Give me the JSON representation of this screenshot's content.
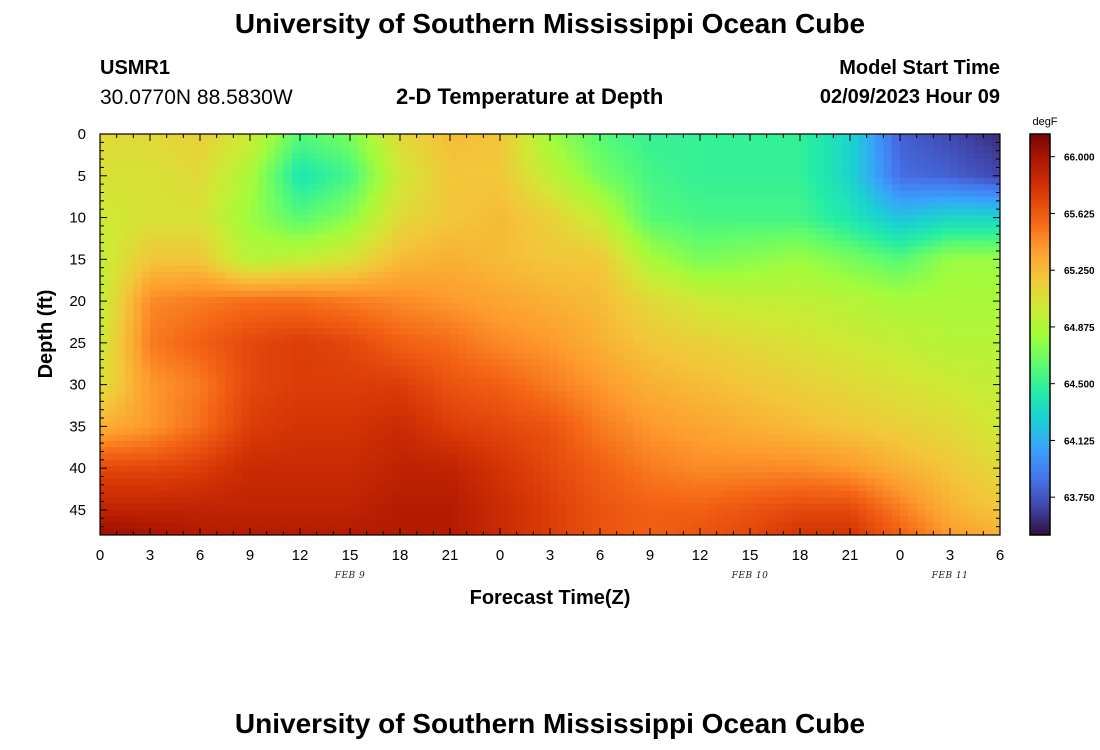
{
  "header": {
    "title_top": "University of Southern Mississippi Ocean Cube",
    "title_bottom": "University of Southern Mississippi Ocean Cube",
    "station_id": "USMR1",
    "coordinates": "30.0770N  88.5830W",
    "plot_title": "2-D Temperature at Depth",
    "start_label": "Model Start Time",
    "start_value": "02/09/2023 Hour 09"
  },
  "chart_data": {
    "type": "heatmap",
    "title": "2-D Temperature at Depth",
    "xlabel": "Forecast Time(Z)",
    "ylabel": "Depth (ft)",
    "x_tick_labels": [
      "0",
      "3",
      "6",
      "9",
      "12",
      "15",
      "18",
      "21",
      "0",
      "3",
      "6",
      "9",
      "12",
      "15",
      "18",
      "21",
      "0",
      "3",
      "6"
    ],
    "x_dates": [
      {
        "label": "FEB 9",
        "hour_index": 15
      },
      {
        "label": "FEB 10",
        "hour_index": 39
      },
      {
        "label": "FEB 11",
        "hour_index": 51
      }
    ],
    "x_range_hours": [
      0,
      54
    ],
    "y_ticks": [
      0,
      5,
      10,
      15,
      20,
      25,
      30,
      35,
      40,
      45
    ],
    "ylim": [
      0,
      48
    ],
    "colorbar": {
      "unit": "degF",
      "min": 63.5,
      "max": 66.15,
      "ticks": [
        "66.000",
        "65.625",
        "65.250",
        "64.875",
        "64.500",
        "64.125",
        "63.750"
      ],
      "colormap": [
        "#30123b",
        "#4145ab",
        "#4675ed",
        "#39a2fc",
        "#1bcfd4",
        "#24eca6",
        "#61fc6c",
        "#a4fc3b",
        "#d1e834",
        "#f3c63a",
        "#fe9b2d",
        "#f36315",
        "#d93806",
        "#b11901",
        "#7a0403"
      ]
    },
    "field_anchors": [
      {
        "hour": 0,
        "depths": [
          0,
          5,
          10,
          15,
          20,
          25,
          30,
          35,
          40,
          45,
          48
        ],
        "values": [
          65.1,
          65.05,
          65.0,
          64.95,
          64.95,
          65.0,
          65.05,
          65.3,
          65.7,
          65.9,
          66.05
        ]
      },
      {
        "hour": 3,
        "depths": [
          0,
          5,
          10,
          15,
          20,
          25,
          30,
          35,
          40,
          45,
          48
        ],
        "values": [
          65.1,
          65.05,
          65.05,
          65.2,
          65.45,
          65.5,
          65.4,
          65.4,
          65.7,
          65.9,
          66.0
        ]
      },
      {
        "hour": 6,
        "depths": [
          0,
          5,
          10,
          15,
          20,
          25,
          30,
          35,
          40,
          45,
          48
        ],
        "values": [
          65.15,
          65.1,
          65.05,
          65.2,
          65.5,
          65.6,
          65.5,
          65.55,
          65.75,
          65.9,
          65.95
        ]
      },
      {
        "hour": 9,
        "depths": [
          0,
          5,
          10,
          15,
          20,
          25,
          30,
          35,
          40,
          45,
          48
        ],
        "values": [
          65.0,
          64.85,
          64.8,
          64.9,
          65.55,
          65.7,
          65.7,
          65.75,
          65.85,
          65.9,
          65.95
        ]
      },
      {
        "hour": 12,
        "depths": [
          0,
          5,
          10,
          15,
          20,
          25,
          30,
          35,
          40,
          45,
          48
        ],
        "values": [
          64.6,
          64.4,
          64.6,
          64.95,
          65.55,
          65.75,
          65.75,
          65.8,
          65.85,
          65.9,
          65.95
        ]
      },
      {
        "hour": 15,
        "depths": [
          0,
          5,
          10,
          15,
          20,
          25,
          30,
          35,
          40,
          45,
          48
        ],
        "values": [
          64.7,
          64.55,
          64.75,
          65.05,
          65.5,
          65.7,
          65.75,
          65.8,
          65.85,
          65.9,
          65.95
        ]
      },
      {
        "hour": 18,
        "depths": [
          0,
          5,
          10,
          15,
          20,
          25,
          30,
          35,
          40,
          45,
          48
        ],
        "values": [
          65.1,
          65.0,
          65.1,
          65.25,
          65.45,
          65.6,
          65.75,
          65.85,
          65.9,
          65.95,
          65.95
        ]
      },
      {
        "hour": 21,
        "depths": [
          0,
          5,
          10,
          15,
          20,
          25,
          30,
          35,
          40,
          45,
          48
        ],
        "values": [
          65.25,
          65.2,
          65.2,
          65.3,
          65.4,
          65.55,
          65.65,
          65.75,
          65.9,
          65.95,
          65.95
        ]
      },
      {
        "hour": 24,
        "depths": [
          0,
          5,
          10,
          15,
          20,
          25,
          30,
          35,
          40,
          45,
          48
        ],
        "values": [
          65.2,
          65.2,
          65.25,
          65.25,
          65.35,
          65.45,
          65.6,
          65.7,
          65.8,
          65.85,
          65.85
        ]
      },
      {
        "hour": 27,
        "depths": [
          0,
          5,
          10,
          15,
          20,
          25,
          30,
          35,
          40,
          45,
          48
        ],
        "values": [
          64.8,
          64.95,
          65.15,
          65.2,
          65.3,
          65.4,
          65.5,
          65.65,
          65.7,
          65.75,
          65.75
        ]
      },
      {
        "hour": 30,
        "depths": [
          0,
          5,
          10,
          15,
          20,
          25,
          30,
          35,
          40,
          45,
          48
        ],
        "values": [
          64.6,
          64.7,
          64.95,
          65.2,
          65.25,
          65.3,
          65.4,
          65.5,
          65.6,
          65.65,
          65.65
        ]
      },
      {
        "hour": 33,
        "depths": [
          0,
          5,
          10,
          15,
          20,
          25,
          30,
          35,
          40,
          45,
          48
        ],
        "values": [
          64.5,
          64.55,
          64.6,
          64.85,
          65.1,
          65.2,
          65.3,
          65.4,
          65.5,
          65.6,
          65.6
        ]
      },
      {
        "hour": 36,
        "depths": [
          0,
          5,
          10,
          15,
          20,
          25,
          30,
          35,
          40,
          45,
          48
        ],
        "values": [
          64.5,
          64.5,
          64.55,
          64.7,
          65.0,
          65.15,
          65.25,
          65.35,
          65.45,
          65.6,
          65.65
        ]
      },
      {
        "hour": 39,
        "depths": [
          0,
          5,
          10,
          15,
          20,
          25,
          30,
          35,
          40,
          45,
          48
        ],
        "values": [
          64.5,
          64.5,
          64.55,
          64.75,
          64.95,
          65.1,
          65.2,
          65.3,
          65.45,
          65.65,
          65.7
        ]
      },
      {
        "hour": 42,
        "depths": [
          0,
          5,
          10,
          15,
          20,
          25,
          30,
          35,
          40,
          45,
          48
        ],
        "values": [
          64.5,
          64.5,
          64.55,
          64.8,
          64.95,
          65.05,
          65.15,
          65.25,
          65.45,
          65.7,
          65.8
        ]
      },
      {
        "hour": 45,
        "depths": [
          0,
          5,
          10,
          15,
          20,
          25,
          30,
          35,
          40,
          45,
          48
        ],
        "values": [
          64.3,
          64.3,
          64.4,
          64.7,
          64.9,
          65.0,
          65.1,
          65.2,
          65.4,
          65.7,
          65.8
        ]
      },
      {
        "hour": 48,
        "depths": [
          0,
          5,
          10,
          15,
          20,
          25,
          30,
          35,
          40,
          45,
          48
        ],
        "values": [
          63.8,
          63.85,
          64.2,
          64.6,
          64.85,
          64.95,
          65.05,
          65.15,
          65.3,
          65.5,
          65.6
        ]
      },
      {
        "hour": 51,
        "depths": [
          0,
          5,
          10,
          15,
          20,
          25,
          30,
          35,
          40,
          45,
          48
        ],
        "values": [
          63.7,
          63.8,
          64.3,
          64.8,
          64.85,
          64.9,
          65.0,
          65.1,
          65.2,
          65.3,
          65.4
        ]
      },
      {
        "hour": 54,
        "depths": [
          0,
          5,
          10,
          15,
          20,
          25,
          30,
          35,
          40,
          45,
          48
        ],
        "values": [
          63.6,
          63.7,
          64.3,
          64.8,
          64.85,
          64.9,
          64.95,
          65.0,
          65.1,
          65.2,
          65.3
        ]
      }
    ]
  }
}
